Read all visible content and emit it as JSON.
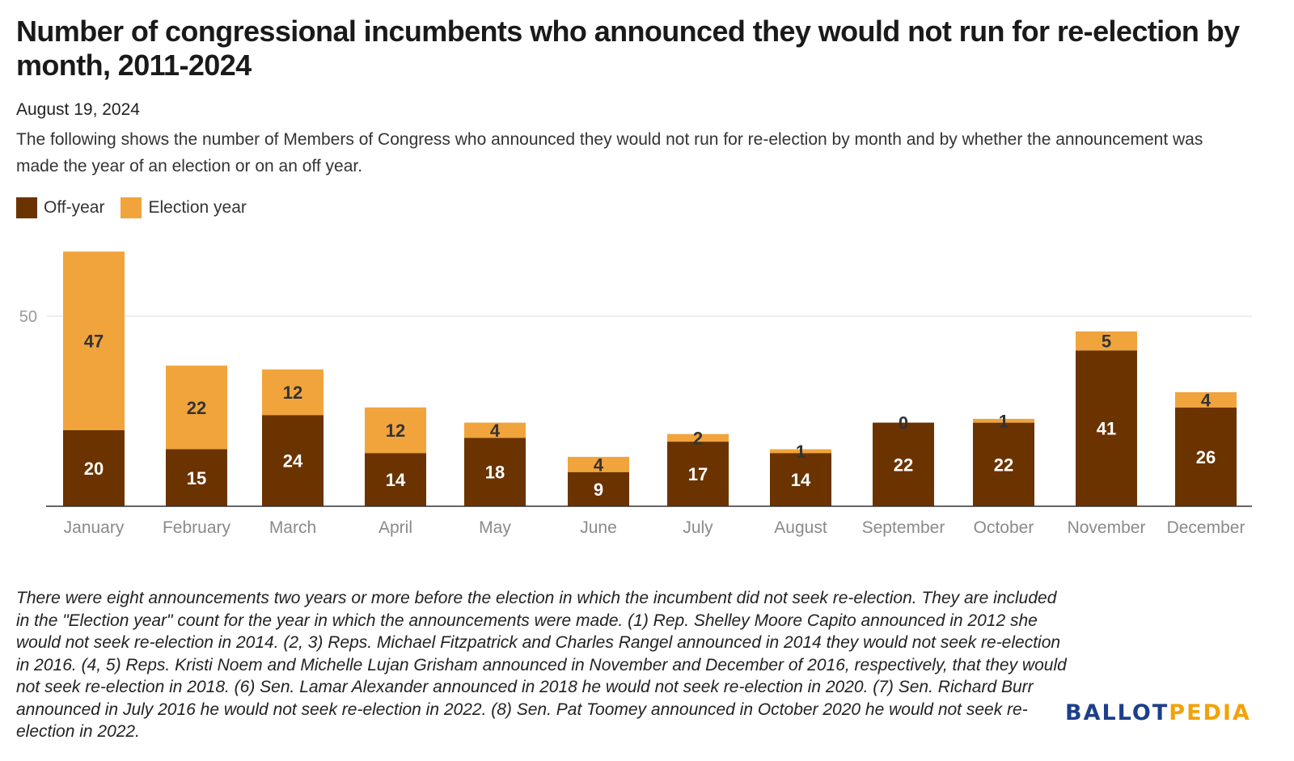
{
  "title": "Number of congressional incumbents who announced they would not run for re-election by month, 2011-2024",
  "date": "August 19, 2024",
  "subtitle": "The following shows the number of Members of Congress who announced they would not run for re-election by month and by whether the announcement was made the year of an election or on an off year.",
  "note": "There were eight announcements two years or more before the election in which the incumbent did not seek re-election. They are included in the \"Election year\" count for the year in which the announcements were made. (1) Rep. Shelley Moore Capito announced in 2012 she would not seek re-election in 2014. (2, 3) Reps. Michael Fitzpatrick and Charles Rangel announced in 2014 they would not seek re-election in 2016. (4, 5) Reps. Kristi Noem and Michelle Lujan Grisham announced in November and December of 2016, respectively, that they would not seek re-election in 2018. (6) Sen. Lamar Alexander announced in 2018 he would not seek re-election in 2020. (7) Sen. Richard Burr announced in July 2016 he would not seek re-election in 2022. (8) Sen. Pat Toomey announced in October 2020 he would not seek re-election in 2022.",
  "logo": {
    "part1": "BALLOT",
    "part2": "PEDIA"
  },
  "colors": {
    "off_year": "#6b3300",
    "election_year": "#f1a43c",
    "logo_blue": "#1d3f8a",
    "logo_gold": "#f2a20a"
  },
  "chart_data": {
    "type": "bar",
    "stacked": true,
    "categories": [
      "January",
      "February",
      "March",
      "April",
      "May",
      "June",
      "July",
      "August",
      "September",
      "October",
      "November",
      "December"
    ],
    "series": [
      {
        "name": "Off-year",
        "color": "#6b3300",
        "values": [
          20,
          15,
          24,
          14,
          18,
          9,
          17,
          14,
          22,
          22,
          41,
          26
        ]
      },
      {
        "name": "Election year",
        "color": "#f1a43c",
        "values": [
          47,
          22,
          12,
          12,
          4,
          4,
          2,
          1,
          0,
          1,
          5,
          4
        ]
      }
    ],
    "yticks": [
      50
    ],
    "ylim": [
      0,
      70
    ],
    "grid": true,
    "legend_position": "top-left",
    "data_labels": true
  }
}
